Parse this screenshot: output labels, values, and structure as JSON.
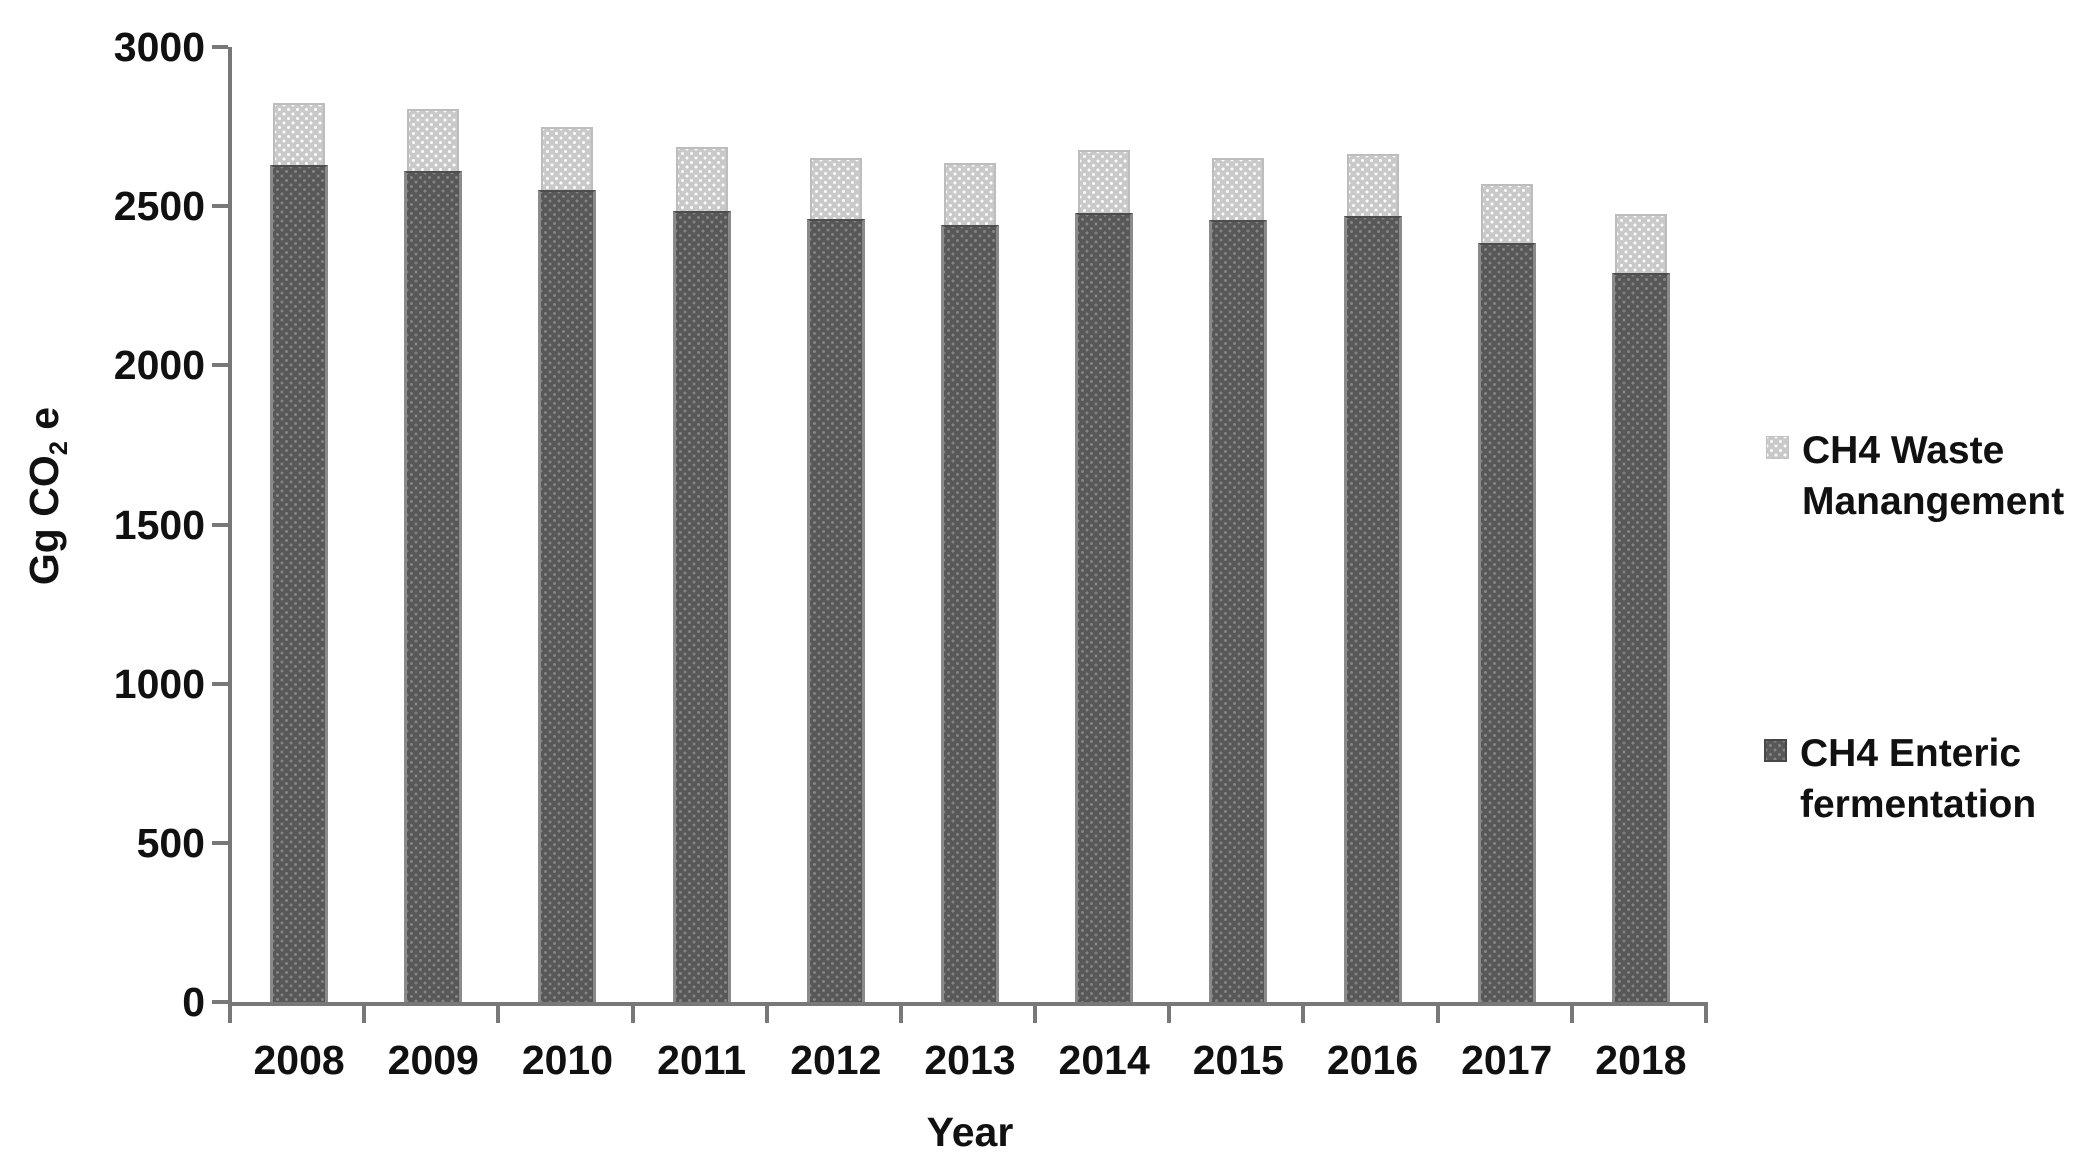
{
  "figure": {
    "background": "#ffffff",
    "axis_color": "#787878",
    "text_color": "#111111",
    "series_colors": {
      "enteric": "#585858",
      "waste": "#c9c9c9"
    }
  },
  "axes": {
    "x_title": "Year",
    "y_title_main": "Gg CO",
    "y_title_sub": "2",
    "y_title_suffix": " e"
  },
  "legend": {
    "items": [
      {
        "id": "waste",
        "line1": "CH4 Waste",
        "line2": "Manangement",
        "color": "#c9c9c9"
      },
      {
        "id": "enteric",
        "line1": "CH4 Enteric",
        "line2": "fermentation",
        "color": "#585858"
      }
    ]
  },
  "chart_data": {
    "type": "bar",
    "stacked": true,
    "title": "",
    "xlabel": "Year",
    "ylabel": "Gg CO2 e",
    "categories": [
      "2008",
      "2009",
      "2010",
      "2011",
      "2012",
      "2013",
      "2014",
      "2015",
      "2016",
      "2017",
      "2018"
    ],
    "series": [
      {
        "name": "CH4 Enteric fermentation",
        "id": "enteric",
        "color": "#585858",
        "values": [
          2630,
          2610,
          2550,
          2485,
          2460,
          2440,
          2480,
          2455,
          2470,
          2385,
          2290
        ]
      },
      {
        "name": "CH4 Waste Manangement",
        "id": "waste",
        "color": "#c9c9c9",
        "values": [
          195,
          195,
          200,
          200,
          190,
          195,
          195,
          195,
          195,
          185,
          185
        ]
      }
    ],
    "totals": [
      2825,
      2805,
      2750,
      2685,
      2650,
      2635,
      2675,
      2650,
      2665,
      2570,
      2475
    ],
    "ylim": [
      0,
      3000
    ],
    "yticks": [
      0,
      500,
      1000,
      1500,
      2000,
      2500,
      3000
    ],
    "grid": false,
    "legend_position": "right"
  }
}
